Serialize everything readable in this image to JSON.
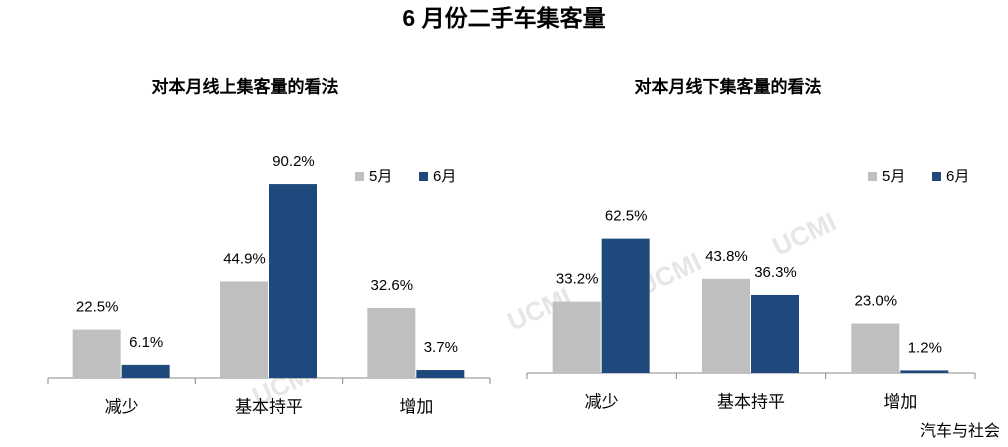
{
  "title": "6 月份二手车集客量",
  "source": "汽车与社会",
  "watermark": "UCMI",
  "chart_data": [
    {
      "type": "bar",
      "title": "对本月线上集客量的看法",
      "categories": [
        "减少",
        "基本持平",
        "增加"
      ],
      "legend": "upper right",
      "series": [
        {
          "name": "5月",
          "color": "#bfbfbf",
          "values": [
            22.5,
            44.9,
            32.6
          ],
          "value_labels": [
            "22.5%",
            "44.9%",
            "32.6%"
          ]
        },
        {
          "name": "6月",
          "color": "#1f497d",
          "values": [
            6.1,
            90.2,
            3.7
          ],
          "value_labels": [
            "6.1%",
            "90.2%",
            "3.7%"
          ]
        }
      ]
    },
    {
      "type": "bar",
      "title": "对本月线下集客量的看法",
      "categories": [
        "减少",
        "基本持平",
        "增加"
      ],
      "legend": "upper right",
      "series": [
        {
          "name": "5月",
          "color": "#bfbfbf",
          "values": [
            33.2,
            43.8,
            23.0
          ],
          "value_labels": [
            "33.2%",
            "43.8%",
            "23.0%"
          ]
        },
        {
          "name": "6月",
          "color": "#1f497d",
          "values": [
            62.5,
            36.3,
            1.2
          ],
          "value_labels": [
            "62.5%",
            "36.3%",
            "1.2%"
          ]
        }
      ]
    }
  ]
}
